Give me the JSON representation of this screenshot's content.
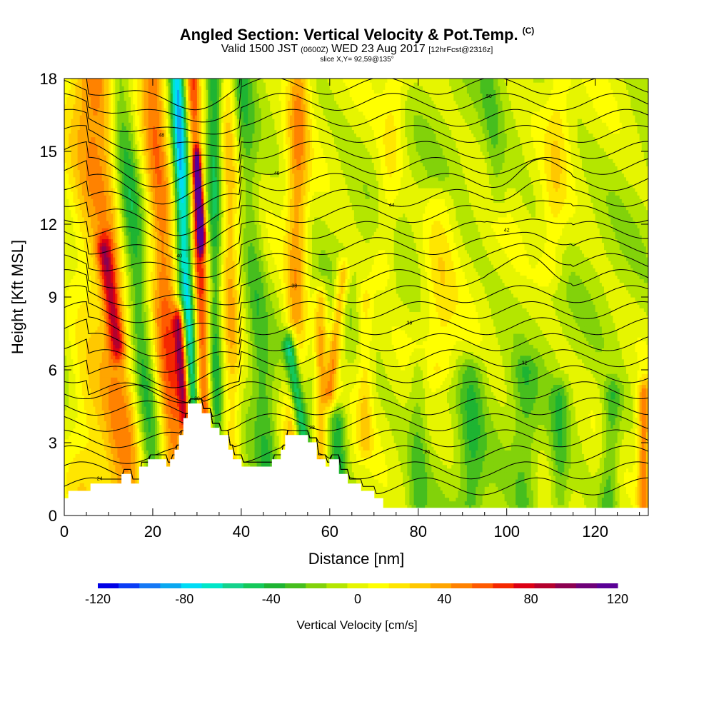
{
  "chart_data": {
    "type": "heatmap",
    "title": "Angled Section: Vertical Velocity & Pot.Temp.",
    "title_suffix": "(C)",
    "subtitle_parts": [
      "Valid 1500 JST",
      "(0600Z)",
      "WED 23 Aug 2017",
      "[12hrFcst@2316z]"
    ],
    "subtitle2": "slice X,Y= 92,59@135°",
    "xlabel": "Distance [nm]",
    "ylabel": "Height [Kft MSL]",
    "xlim": [
      0,
      132
    ],
    "ylim": [
      0,
      18
    ],
    "xticks": [
      "0",
      "20",
      "40",
      "60",
      "80",
      "100",
      "120"
    ],
    "yticks": [
      "0",
      "3",
      "6",
      "9",
      "12",
      "15",
      "18"
    ],
    "colorbar": {
      "label": "Vertical Velocity [cm/s]",
      "ticks": [
        "-120",
        "-80",
        "-40",
        "0",
        "40",
        "80",
        "120"
      ],
      "range": [
        -120,
        120
      ],
      "step": 10,
      "colors": [
        "#0000e6",
        "#0a3cf5",
        "#1478f5",
        "#0aa8f0",
        "#00dcf5",
        "#00e6c8",
        "#14d28c",
        "#14c85a",
        "#1eb432",
        "#46be1e",
        "#82d20a",
        "#b4e600",
        "#e6f500",
        "#ffff00",
        "#ffe600",
        "#ffc800",
        "#ffa500",
        "#ff8200",
        "#ff5a00",
        "#f52800",
        "#dc0014",
        "#b4002d",
        "#8c0050",
        "#6e0078",
        "#5a0096"
      ]
    },
    "terrain_kft": [
      [
        0,
        0.7
      ],
      [
        1,
        1.0
      ],
      [
        6,
        1.3
      ],
      [
        13,
        1.7
      ],
      [
        15,
        1.3
      ],
      [
        17,
        2.0
      ],
      [
        19,
        2.3
      ],
      [
        22,
        2.3
      ],
      [
        23,
        2.0
      ],
      [
        24,
        2.3
      ],
      [
        25,
        2.7
      ],
      [
        26,
        3.3
      ],
      [
        27,
        4.0
      ],
      [
        28,
        4.6
      ],
      [
        31,
        4.2
      ],
      [
        33,
        3.6
      ],
      [
        35,
        3.3
      ],
      [
        37,
        2.7
      ],
      [
        38,
        2.3
      ],
      [
        40,
        2.0
      ],
      [
        42,
        2.0
      ],
      [
        45,
        2.0
      ],
      [
        47,
        2.3
      ],
      [
        49,
        2.7
      ],
      [
        50,
        3.3
      ],
      [
        53,
        3.3
      ],
      [
        55,
        3.0
      ],
      [
        57,
        2.3
      ],
      [
        59,
        2.0
      ],
      [
        60,
        2.3
      ],
      [
        62,
        1.7
      ],
      [
        64,
        1.3
      ],
      [
        67,
        1.0
      ],
      [
        70,
        0.7
      ],
      [
        72,
        0.3
      ],
      [
        132,
        0.3
      ]
    ],
    "velocity_features": [
      {
        "x0": 5,
        "x1": 4,
        "ybot": 0.5,
        "ytop": 18,
        "w": 6,
        "v": 20
      },
      {
        "x0": 14,
        "x1": 8,
        "ybot": 1.2,
        "ytop": 18,
        "w": 7,
        "v": 45
      },
      {
        "x0": 12,
        "x1": 9,
        "ybot": 7,
        "ytop": 11,
        "w": 2.5,
        "v": 60
      },
      {
        "x0": 20,
        "x1": 12,
        "ybot": 1.5,
        "ytop": 18,
        "w": 4,
        "v": -45
      },
      {
        "x0": 25,
        "x1": 20,
        "ybot": 2,
        "ytop": 18,
        "w": 4.5,
        "v": 60
      },
      {
        "x0": 27.5,
        "x1": 26,
        "ybot": 4,
        "ytop": 8,
        "w": 1.8,
        "v": 95
      },
      {
        "x0": 29,
        "x1": 25.5,
        "ybot": 3.5,
        "ytop": 18,
        "w": 2.5,
        "v": -80
      },
      {
        "x0": 32,
        "x1": 29,
        "ybot": 3.5,
        "ytop": 18,
        "w": 2.5,
        "v": 70
      },
      {
        "x0": 31,
        "x1": 30,
        "ybot": 11.5,
        "ytop": 14.5,
        "w": 1.2,
        "v": 110
      },
      {
        "x0": 34,
        "x1": 34,
        "ybot": 3,
        "ytop": 18,
        "w": 2.5,
        "v": -40
      },
      {
        "x0": 38,
        "x1": 37,
        "ybot": 2,
        "ytop": 18,
        "w": 3,
        "v": 35
      },
      {
        "x0": 46,
        "x1": 40,
        "ybot": 2,
        "ytop": 18,
        "w": 3.5,
        "v": -25
      },
      {
        "x0": 52,
        "x1": 53,
        "ybot": 3,
        "ytop": 18,
        "w": 3.5,
        "v": 45
      },
      {
        "x0": 54,
        "x1": 51,
        "ybot": 3,
        "ytop": 7,
        "w": 2.2,
        "v": -75
      },
      {
        "x0": 58,
        "x1": 58,
        "ybot": 2,
        "ytop": 9,
        "w": 2,
        "v": 40
      },
      {
        "x0": 60,
        "x1": 63,
        "ybot": 5,
        "ytop": 10,
        "w": 2,
        "v": 45
      },
      {
        "x0": 62,
        "x1": 62,
        "ybot": 0.5,
        "ytop": 4,
        "w": 2.5,
        "v": -35
      },
      {
        "x0": 68,
        "x1": 68,
        "ybot": 3,
        "ytop": 9,
        "w": 2.5,
        "v": 25
      },
      {
        "x0": 80,
        "x1": 80,
        "ybot": 0.5,
        "ytop": 6,
        "w": 3,
        "v": -20
      },
      {
        "x0": 92,
        "x1": 92,
        "ybot": 0.5,
        "ytop": 6,
        "w": 4,
        "v": -25
      },
      {
        "x0": 85,
        "x1": 85,
        "ybot": 6,
        "ytop": 13,
        "w": 5,
        "v": 20
      },
      {
        "x0": 104,
        "x1": 104,
        "ybot": 0.5,
        "ytop": 6,
        "w": 4,
        "v": -20
      },
      {
        "x0": 112,
        "x1": 112,
        "ybot": 0.5,
        "ytop": 5,
        "w": 3,
        "v": -25
      },
      {
        "x0": 110,
        "x1": 112,
        "ybot": 10,
        "ytop": 18,
        "w": 4,
        "v": 20
      },
      {
        "x0": 123,
        "x1": 124,
        "ybot": 0.5,
        "ytop": 5,
        "w": 3,
        "v": -30
      },
      {
        "x0": 131,
        "x1": 131,
        "ybot": 0.5,
        "ytop": 5,
        "w": 2,
        "v": 55
      },
      {
        "x0": 72,
        "x1": 75,
        "ybot": 10,
        "ytop": 18,
        "w": 4,
        "v": 20
      },
      {
        "x0": 98,
        "x1": 96,
        "ybot": 13,
        "ytop": 18,
        "w": 3,
        "v": -15
      }
    ],
    "theta_contour_labels": [
      "20",
      "24",
      "26",
      "28",
      "30",
      "32",
      "36",
      "38",
      "40",
      "42",
      "44",
      "46",
      "48",
      "50",
      "52",
      "54",
      "56"
    ]
  }
}
